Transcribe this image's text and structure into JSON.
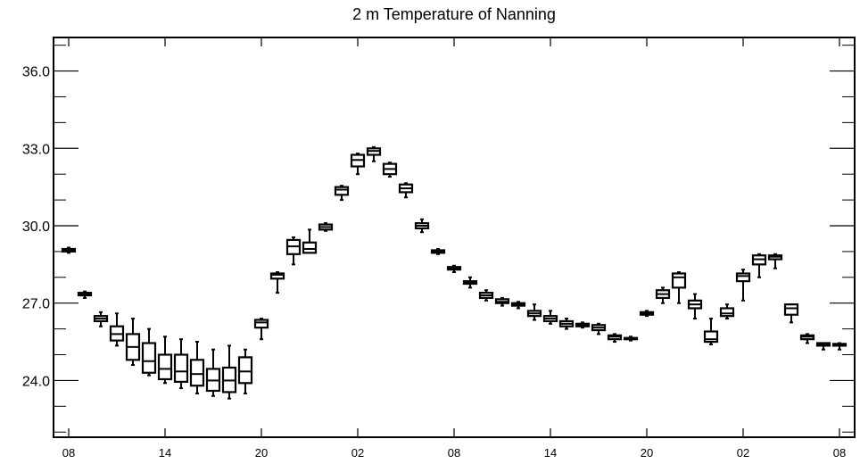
{
  "chart_data": {
    "type": "boxplot",
    "title": "2 m Temperature of Nanning",
    "xlabel": "",
    "ylabel": "",
    "ylim": [
      21.8,
      37.3
    ],
    "y_ticks": [
      24.0,
      27.0,
      30.0,
      33.0,
      36.0
    ],
    "y_tick_labels": [
      "24.0",
      "27.0",
      "30.0",
      "33.0",
      "36.0"
    ],
    "x_ticks": [
      0,
      6,
      12,
      18,
      24,
      30,
      36,
      42,
      48
    ],
    "x_tick_labels": [
      "08",
      "14",
      "20",
      "02",
      "08",
      "14",
      "20",
      "02",
      "08"
    ],
    "xlim": [
      -1,
      49
    ],
    "boxes": [
      {
        "x": 0,
        "min": 28.95,
        "q1": 29.0,
        "median": 29.05,
        "q3": 29.1,
        "max": 29.15
      },
      {
        "x": 1,
        "min": 27.2,
        "q1": 27.3,
        "median": 27.35,
        "q3": 27.4,
        "max": 27.45
      },
      {
        "x": 2,
        "min": 26.1,
        "q1": 26.3,
        "median": 26.4,
        "q3": 26.5,
        "max": 26.65
      },
      {
        "x": 3,
        "min": 25.35,
        "q1": 25.55,
        "median": 25.8,
        "q3": 26.1,
        "max": 26.6
      },
      {
        "x": 4,
        "min": 24.6,
        "q1": 24.8,
        "median": 25.3,
        "q3": 25.8,
        "max": 26.4
      },
      {
        "x": 5,
        "min": 24.2,
        "q1": 24.3,
        "median": 24.75,
        "q3": 25.45,
        "max": 26.0
      },
      {
        "x": 6,
        "min": 23.9,
        "q1": 24.05,
        "median": 24.45,
        "q3": 25.0,
        "max": 25.7
      },
      {
        "x": 7,
        "min": 23.7,
        "q1": 23.95,
        "median": 24.35,
        "q3": 25.0,
        "max": 25.6
      },
      {
        "x": 8,
        "min": 23.5,
        "q1": 23.8,
        "median": 24.25,
        "q3": 24.8,
        "max": 25.5
      },
      {
        "x": 9,
        "min": 23.4,
        "q1": 23.6,
        "median": 24.0,
        "q3": 24.45,
        "max": 25.2
      },
      {
        "x": 10,
        "min": 23.3,
        "q1": 23.55,
        "median": 24.0,
        "q3": 24.5,
        "max": 25.35
      },
      {
        "x": 11,
        "min": 23.5,
        "q1": 23.9,
        "median": 24.35,
        "q3": 24.9,
        "max": 25.2
      },
      {
        "x": 12,
        "min": 25.6,
        "q1": 26.05,
        "median": 26.25,
        "q3": 26.35,
        "max": 26.4
      },
      {
        "x": 13,
        "min": 27.4,
        "q1": 27.95,
        "median": 28.1,
        "q3": 28.15,
        "max": 28.2
      },
      {
        "x": 14,
        "min": 28.5,
        "q1": 28.9,
        "median": 29.2,
        "q3": 29.45,
        "max": 29.55
      },
      {
        "x": 15,
        "min": 28.95,
        "q1": 28.95,
        "median": 29.1,
        "q3": 29.35,
        "max": 29.85
      },
      {
        "x": 16,
        "min": 29.8,
        "q1": 29.85,
        "median": 29.95,
        "q3": 30.05,
        "max": 30.1
      },
      {
        "x": 17,
        "min": 31.0,
        "q1": 31.2,
        "median": 31.4,
        "q3": 31.5,
        "max": 31.55
      },
      {
        "x": 18,
        "min": 32.0,
        "q1": 32.3,
        "median": 32.55,
        "q3": 32.75,
        "max": 32.8
      },
      {
        "x": 19,
        "min": 32.5,
        "q1": 32.75,
        "median": 32.9,
        "q3": 33.0,
        "max": 33.05
      },
      {
        "x": 20,
        "min": 31.9,
        "q1": 32.0,
        "median": 32.2,
        "q3": 32.4,
        "max": 32.45
      },
      {
        "x": 21,
        "min": 31.1,
        "q1": 31.3,
        "median": 31.45,
        "q3": 31.6,
        "max": 31.65
      },
      {
        "x": 22,
        "min": 29.75,
        "q1": 29.9,
        "median": 30.0,
        "q3": 30.1,
        "max": 30.25
      },
      {
        "x": 23,
        "min": 28.9,
        "q1": 28.95,
        "median": 29.0,
        "q3": 29.05,
        "max": 29.1
      },
      {
        "x": 24,
        "min": 28.2,
        "q1": 28.3,
        "median": 28.35,
        "q3": 28.4,
        "max": 28.45
      },
      {
        "x": 25,
        "min": 27.6,
        "q1": 27.75,
        "median": 27.8,
        "q3": 27.85,
        "max": 28.0
      },
      {
        "x": 26,
        "min": 27.1,
        "q1": 27.2,
        "median": 27.3,
        "q3": 27.4,
        "max": 27.5
      },
      {
        "x": 27,
        "min": 26.9,
        "q1": 27.0,
        "median": 27.05,
        "q3": 27.15,
        "max": 27.2
      },
      {
        "x": 28,
        "min": 26.8,
        "q1": 26.9,
        "median": 26.95,
        "q3": 27.0,
        "max": 27.05
      },
      {
        "x": 29,
        "min": 26.35,
        "q1": 26.5,
        "median": 26.6,
        "q3": 26.7,
        "max": 26.95
      },
      {
        "x": 30,
        "min": 26.2,
        "q1": 26.3,
        "median": 26.4,
        "q3": 26.5,
        "max": 26.7
      },
      {
        "x": 31,
        "min": 26.0,
        "q1": 26.1,
        "median": 26.2,
        "q3": 26.3,
        "max": 26.4
      },
      {
        "x": 32,
        "min": 26.05,
        "q1": 26.1,
        "median": 26.15,
        "q3": 26.2,
        "max": 26.25
      },
      {
        "x": 33,
        "min": 25.8,
        "q1": 25.95,
        "median": 26.05,
        "q3": 26.15,
        "max": 26.2
      },
      {
        "x": 34,
        "min": 25.5,
        "q1": 25.6,
        "median": 25.7,
        "q3": 25.75,
        "max": 25.8
      },
      {
        "x": 35,
        "min": 25.55,
        "q1": 25.6,
        "median": 25.62,
        "q3": 25.65,
        "max": 25.7
      },
      {
        "x": 36,
        "min": 26.5,
        "q1": 26.55,
        "median": 26.6,
        "q3": 26.65,
        "max": 26.7
      },
      {
        "x": 37,
        "min": 27.0,
        "q1": 27.2,
        "median": 27.35,
        "q3": 27.5,
        "max": 27.6
      },
      {
        "x": 38,
        "min": 27.0,
        "q1": 27.6,
        "median": 28.0,
        "q3": 28.15,
        "max": 28.2
      },
      {
        "x": 39,
        "min": 26.4,
        "q1": 26.8,
        "median": 26.95,
        "q3": 27.1,
        "max": 27.35
      },
      {
        "x": 40,
        "min": 25.4,
        "q1": 25.5,
        "median": 25.6,
        "q3": 25.9,
        "max": 26.4
      },
      {
        "x": 41,
        "min": 26.4,
        "q1": 26.5,
        "median": 26.6,
        "q3": 26.8,
        "max": 26.95
      },
      {
        "x": 42,
        "min": 27.1,
        "q1": 27.85,
        "median": 28.05,
        "q3": 28.15,
        "max": 28.3
      },
      {
        "x": 43,
        "min": 28.0,
        "q1": 28.5,
        "median": 28.7,
        "q3": 28.85,
        "max": 28.9
      },
      {
        "x": 44,
        "min": 28.35,
        "q1": 28.7,
        "median": 28.8,
        "q3": 28.85,
        "max": 28.9
      },
      {
        "x": 45,
        "min": 26.25,
        "q1": 26.55,
        "median": 26.8,
        "q3": 26.95,
        "max": 26.95
      },
      {
        "x": 46,
        "min": 25.45,
        "q1": 25.6,
        "median": 25.7,
        "q3": 25.75,
        "max": 25.8
      },
      {
        "x": 47,
        "min": 25.2,
        "q1": 25.35,
        "median": 25.4,
        "q3": 25.45,
        "max": 25.45
      },
      {
        "x": 48,
        "min": 25.2,
        "q1": 25.35,
        "median": 25.4,
        "q3": 25.42,
        "max": 25.45
      }
    ]
  }
}
